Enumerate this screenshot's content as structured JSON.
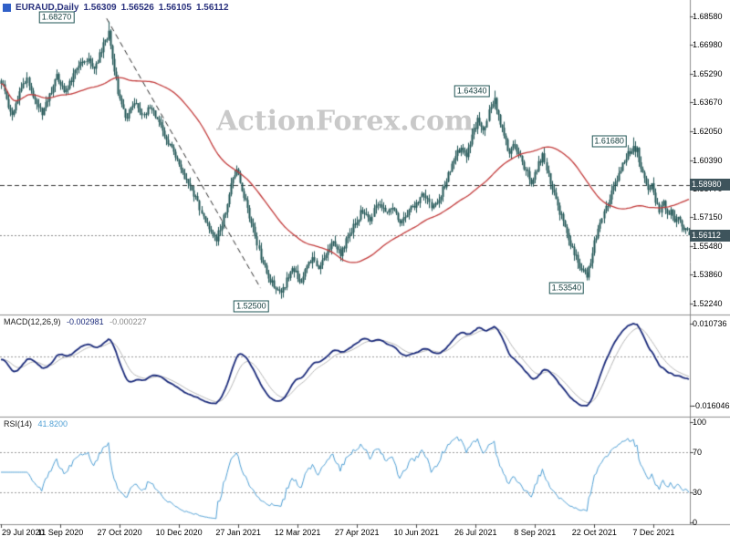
{
  "watermark": "ActionForex.com",
  "colors": {
    "background": "#ffffff",
    "candle": "#1f5454",
    "ma_line": "#c23b3b",
    "macd_line": "#1a2a7a",
    "macd_signal": "#b5b5b5",
    "rsi_line": "#4f9fd4",
    "watermark": "#c9c9c9",
    "axis_text": "#000000",
    "title_text": "#29317d",
    "tag_bg": "#3e545c",
    "tag_text": "#ffffff",
    "annotation_border": "#1f5454",
    "annotation_text": "#123c3c",
    "separator": "#8c8c8c",
    "level_line": "#9a9a9a",
    "trendline": "#2a2a2a",
    "tick_mark": "#444444"
  },
  "chart_data": {
    "type": "candlestick",
    "symbol_timeframe": "EURAUD,Daily",
    "ohlc_display": {
      "open": "1.56309",
      "high": "1.56526",
      "low": "1.56105",
      "close": "1.56112"
    },
    "total_days": 372,
    "seed": 20211207,
    "x_axis": {
      "tick_labels": [
        "29 Jul 2020",
        "11 Sep 2020",
        "27 Oct 2020",
        "10 Dec 2020",
        "27 Jan 2021",
        "12 Mar 2021",
        "27 Apr 2021",
        "10 Jun 2021",
        "26 Jul 2021",
        "8 Sep 2021",
        "22 Oct 2021",
        "7 Dec 2021"
      ],
      "first_tick_day": 0,
      "tick_interval_days": 32
    },
    "main_pane": {
      "price_top": 1.695,
      "price_bottom": 1.516,
      "y_tick_labels": [
        "1.68580",
        "1.66980",
        "1.65290",
        "1.63670",
        "1.62050",
        "1.60390",
        "1.58770",
        "1.57150",
        "1.55480",
        "1.53860",
        "1.52240"
      ],
      "ma": {
        "type": "SMA",
        "period": 55
      },
      "price_anchors": [
        [
          0,
          1.649
        ],
        [
          3,
          1.638
        ],
        [
          6,
          1.628
        ],
        [
          10,
          1.642
        ],
        [
          14,
          1.65
        ],
        [
          18,
          1.638
        ],
        [
          22,
          1.63
        ],
        [
          26,
          1.641
        ],
        [
          30,
          1.652
        ],
        [
          34,
          1.642
        ],
        [
          38,
          1.65
        ],
        [
          42,
          1.658
        ],
        [
          46,
          1.662
        ],
        [
          50,
          1.654
        ],
        [
          54,
          1.667
        ],
        [
          58,
          1.676
        ],
        [
          61,
          1.656
        ],
        [
          64,
          1.637
        ],
        [
          68,
          1.627
        ],
        [
          72,
          1.638
        ],
        [
          76,
          1.629
        ],
        [
          80,
          1.634
        ],
        [
          84,
          1.627
        ],
        [
          88,
          1.618
        ],
        [
          92,
          1.61
        ],
        [
          96,
          1.601
        ],
        [
          100,
          1.592
        ],
        [
          104,
          1.584
        ],
        [
          108,
          1.575
        ],
        [
          112,
          1.566
        ],
        [
          116,
          1.559
        ],
        [
          120,
          1.571
        ],
        [
          124,
          1.589
        ],
        [
          127,
          1.599
        ],
        [
          130,
          1.588
        ],
        [
          133,
          1.576
        ],
        [
          136,
          1.564
        ],
        [
          140,
          1.549
        ],
        [
          144,
          1.538
        ],
        [
          148,
          1.53
        ],
        [
          151,
          1.527
        ],
        [
          154,
          1.536
        ],
        [
          158,
          1.542
        ],
        [
          161,
          1.534
        ],
        [
          164,
          1.54
        ],
        [
          168,
          1.548
        ],
        [
          171,
          1.542
        ],
        [
          175,
          1.551
        ],
        [
          179,
          1.558
        ],
        [
          183,
          1.551
        ],
        [
          187,
          1.56
        ],
        [
          191,
          1.568
        ],
        [
          195,
          1.576
        ],
        [
          199,
          1.571
        ],
        [
          203,
          1.579
        ],
        [
          207,
          1.574
        ],
        [
          211,
          1.578
        ],
        [
          215,
          1.569
        ],
        [
          219,
          1.574
        ],
        [
          224,
          1.579
        ],
        [
          228,
          1.585
        ],
        [
          232,
          1.577
        ],
        [
          236,
          1.582
        ],
        [
          240,
          1.592
        ],
        [
          244,
          1.604
        ],
        [
          248,
          1.612
        ],
        [
          251,
          1.606
        ],
        [
          254,
          1.618
        ],
        [
          257,
          1.626
        ],
        [
          260,
          1.62
        ],
        [
          263,
          1.632
        ],
        [
          266,
          1.638
        ],
        [
          268,
          1.628
        ],
        [
          271,
          1.617
        ],
        [
          274,
          1.608
        ],
        [
          277,
          1.613
        ],
        [
          280,
          1.605
        ],
        [
          283,
          1.598
        ],
        [
          286,
          1.592
        ],
        [
          289,
          1.599
        ],
        [
          292,
          1.606
        ],
        [
          295,
          1.596
        ],
        [
          298,
          1.584
        ],
        [
          301,
          1.574
        ],
        [
          304,
          1.566
        ],
        [
          307,
          1.556
        ],
        [
          310,
          1.548
        ],
        [
          313,
          1.542
        ],
        [
          316,
          1.538
        ],
        [
          318,
          1.546
        ],
        [
          320,
          1.557
        ],
        [
          323,
          1.568
        ],
        [
          326,
          1.576
        ],
        [
          329,
          1.585
        ],
        [
          332,
          1.594
        ],
        [
          335,
          1.601
        ],
        [
          338,
          1.607
        ],
        [
          341,
          1.612
        ],
        [
          343,
          1.609
        ],
        [
          345,
          1.6
        ],
        [
          347,
          1.592
        ],
        [
          349,
          1.586
        ],
        [
          351,
          1.591
        ],
        [
          353,
          1.581
        ],
        [
          355,
          1.574
        ],
        [
          357,
          1.579
        ],
        [
          359,
          1.572
        ],
        [
          361,
          1.576
        ],
        [
          363,
          1.568
        ],
        [
          365,
          1.571
        ],
        [
          367,
          1.565
        ],
        [
          369,
          1.564
        ],
        [
          371,
          1.56112
        ]
      ],
      "key_points": [
        {
          "day": 58,
          "type": "high",
          "price": 1.6827
        },
        {
          "day": 151,
          "type": "low",
          "price": 1.525
        },
        {
          "day": 266,
          "type": "high",
          "price": 1.6434
        },
        {
          "day": 316,
          "type": "low",
          "price": 1.5354
        },
        {
          "day": 341,
          "type": "high",
          "price": 1.6168
        },
        {
          "day": 371,
          "type": "open",
          "price": 1.56309
        },
        {
          "day": 371,
          "type": "high",
          "price": 1.56526
        },
        {
          "day": 371,
          "type": "low",
          "price": 1.56105
        },
        {
          "day": 371,
          "type": "close",
          "price": 1.56112
        }
      ],
      "annotations": [
        {
          "label": "1.68270",
          "day": 30,
          "price": 1.6851
        },
        {
          "label": "1.64340",
          "day": 254,
          "price": 1.643
        },
        {
          "label": "1.61680",
          "day": 328,
          "price": 1.6148
        },
        {
          "label": "1.53540",
          "day": 305,
          "price": 1.5312
        },
        {
          "label": "1.52500",
          "day": 135,
          "price": 1.5205
        }
      ],
      "axis_tags": [
        {
          "label": "1.58980",
          "price": 1.5898
        },
        {
          "label": "1.56112",
          "price": 1.56112
        }
      ],
      "hlines": [
        {
          "price": 1.5898,
          "style": "dashed",
          "color": "#3a3a3a"
        },
        {
          "price": 1.56112,
          "style": "dotted",
          "color": "#8a8a8a"
        }
      ],
      "trendline": {
        "from": {
          "day": 57,
          "price": 1.6845
        },
        "to": {
          "day": 140,
          "price": 1.531
        },
        "style": "dashed"
      }
    },
    "macd_pane": {
      "title": "MACD(12,26,9)",
      "macd_value": "-0.002981",
      "signal_value": "-0.000227",
      "y_tick_labels": [
        "0.010736",
        "-0.016046"
      ],
      "range": [
        -0.016046,
        0.010736
      ],
      "fast": 12,
      "slow": 26,
      "signal": 9
    },
    "rsi_pane": {
      "title": "RSI(14)",
      "value": "41.8200",
      "y_tick_labels": [
        "100",
        "70",
        "30",
        "0"
      ],
      "levels": [
        70,
        30
      ],
      "period": 14
    }
  }
}
